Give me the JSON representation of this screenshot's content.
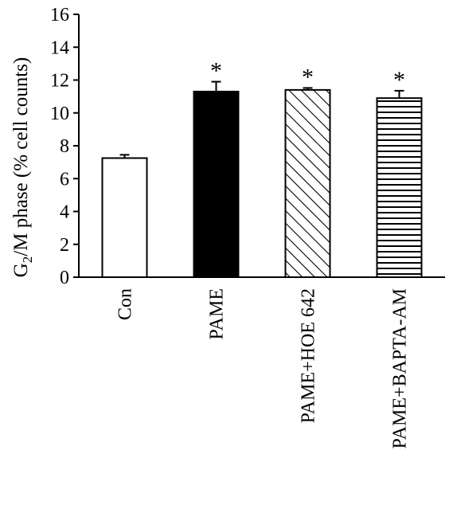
{
  "chart_data": {
    "type": "bar",
    "title": "",
    "xlabel": "",
    "ylabel_parts": {
      "before": "G",
      "sub": "2",
      "after": "/M phase (% cell counts)"
    },
    "ylim": [
      0,
      16
    ],
    "yticks": [
      0,
      2,
      4,
      6,
      8,
      10,
      12,
      14,
      16
    ],
    "categories": [
      "Con",
      "PAME",
      "PAME+HOE 642",
      "PAME+BAPTA-AM"
    ],
    "values": [
      7.25,
      11.3,
      11.4,
      10.9
    ],
    "errors": [
      0.2,
      0.6,
      0.12,
      0.45
    ],
    "significance": [
      "",
      "*",
      "*",
      "*"
    ],
    "fills": [
      "white",
      "black",
      "diagonal-hatch",
      "horizontal-hatch"
    ],
    "grid": false,
    "legend": "none"
  }
}
